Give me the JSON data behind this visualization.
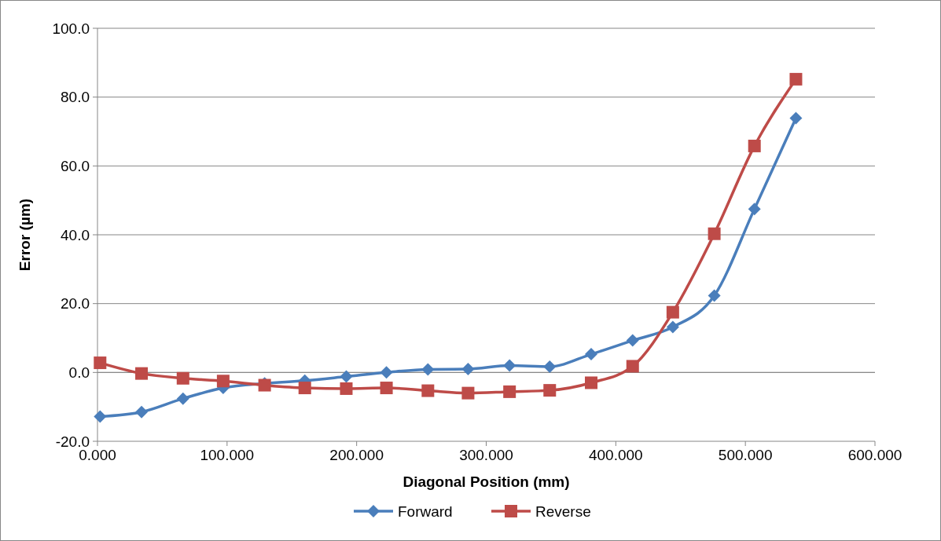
{
  "chart_data": {
    "type": "line",
    "xlabel": "Diagonal Position (mm)",
    "ylabel": "Error (µm)",
    "x": [
      2,
      34,
      66,
      97,
      129,
      160,
      192,
      223,
      255,
      286,
      318,
      349,
      381,
      413,
      444,
      476,
      507,
      539
    ],
    "series": [
      {
        "name": "Forward",
        "color": "#4a7ebb",
        "marker": "diamond",
        "values": [
          -12.8,
          -11.5,
          -7.6,
          -4.5,
          -3.2,
          -2.4,
          -1.2,
          0,
          0.9,
          1.0,
          2.0,
          1.7,
          5.3,
          9.3,
          13.2,
          22.3,
          47.5,
          73.9
        ]
      },
      {
        "name": "Reverse",
        "color": "#be4b48",
        "marker": "square",
        "values": [
          2.8,
          -0.3,
          -1.7,
          -2.5,
          -3.7,
          -4.5,
          -4.7,
          -4.5,
          -5.3,
          -6.0,
          -5.6,
          -5.2,
          -3.0,
          1.8,
          17.5,
          40.3,
          65.8,
          85.2
        ]
      }
    ],
    "xlim": [
      0,
      600
    ],
    "xticks": [
      {
        "value": 0,
        "label": "0.000"
      },
      {
        "value": 100,
        "label": "100.000"
      },
      {
        "value": 200,
        "label": "200.000"
      },
      {
        "value": 300,
        "label": "300.000"
      },
      {
        "value": 400,
        "label": "400.000"
      },
      {
        "value": 500,
        "label": "500.000"
      },
      {
        "value": 600,
        "label": "600.000"
      }
    ],
    "ylim": [
      -20,
      100
    ],
    "yticks": [
      {
        "value": -20,
        "label": "-20.0"
      },
      {
        "value": 0,
        "label": "0.0"
      },
      {
        "value": 20,
        "label": "20.0"
      },
      {
        "value": 40,
        "label": "40.0"
      },
      {
        "value": 60,
        "label": "60.0"
      },
      {
        "value": 80,
        "label": "80.0"
      },
      {
        "value": 100,
        "label": "100.0"
      }
    ],
    "grid": "y",
    "legend": "bottom",
    "line_style": "solid"
  }
}
